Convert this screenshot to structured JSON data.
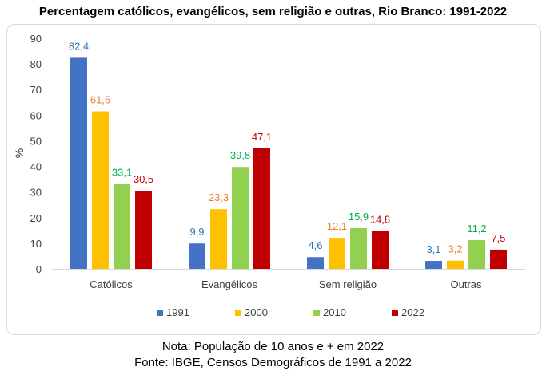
{
  "title": "Percentagem católicos, evangélicos, sem religião e outras, Rio Branco: 1991-2022",
  "note": "Nota: População de 10 anos e + em 2022",
  "source": "Fonte: IBGE, Censos Demográficos de 1991 a 2022",
  "chart_data": {
    "type": "bar",
    "title": "Percentagem católicos, evangélicos, sem religião e outras, Rio Branco: 1991-2022",
    "xlabel": "",
    "ylabel": "%",
    "ylim": [
      0,
      90
    ],
    "yticks": [
      0,
      10,
      20,
      30,
      40,
      50,
      60,
      70,
      80,
      90
    ],
    "grid": false,
    "legend_position": "bottom",
    "categories": [
      "Católicos",
      "Evangélicos",
      "Sem religião",
      "Outras"
    ],
    "series": [
      {
        "name": "1991",
        "color": "#4472C4",
        "values": [
          82.4,
          9.9,
          4.6,
          3.1
        ],
        "labels": [
          "82,4",
          "9,9",
          "4,6",
          "3,1"
        ]
      },
      {
        "name": "2000",
        "color": "#FFC000",
        "values": [
          61.5,
          23.3,
          12.1,
          3.2
        ],
        "labels": [
          "61,5",
          "23,3",
          "12,1",
          "3,2"
        ]
      },
      {
        "name": "2010",
        "color": "#92D050",
        "values": [
          33.1,
          39.8,
          15.9,
          11.2
        ],
        "labels": [
          "33,1",
          "39,8",
          "15,9",
          "11,2"
        ]
      },
      {
        "name": "2022",
        "color": "#C00000",
        "values": [
          30.5,
          47.1,
          14.8,
          7.5
        ],
        "labels": [
          "30,5",
          "47,1",
          "14,8",
          "7,5"
        ]
      }
    ],
    "label_colors": [
      "#2E75B6",
      "#ED7D31",
      "#00B050",
      "#C00000"
    ]
  }
}
